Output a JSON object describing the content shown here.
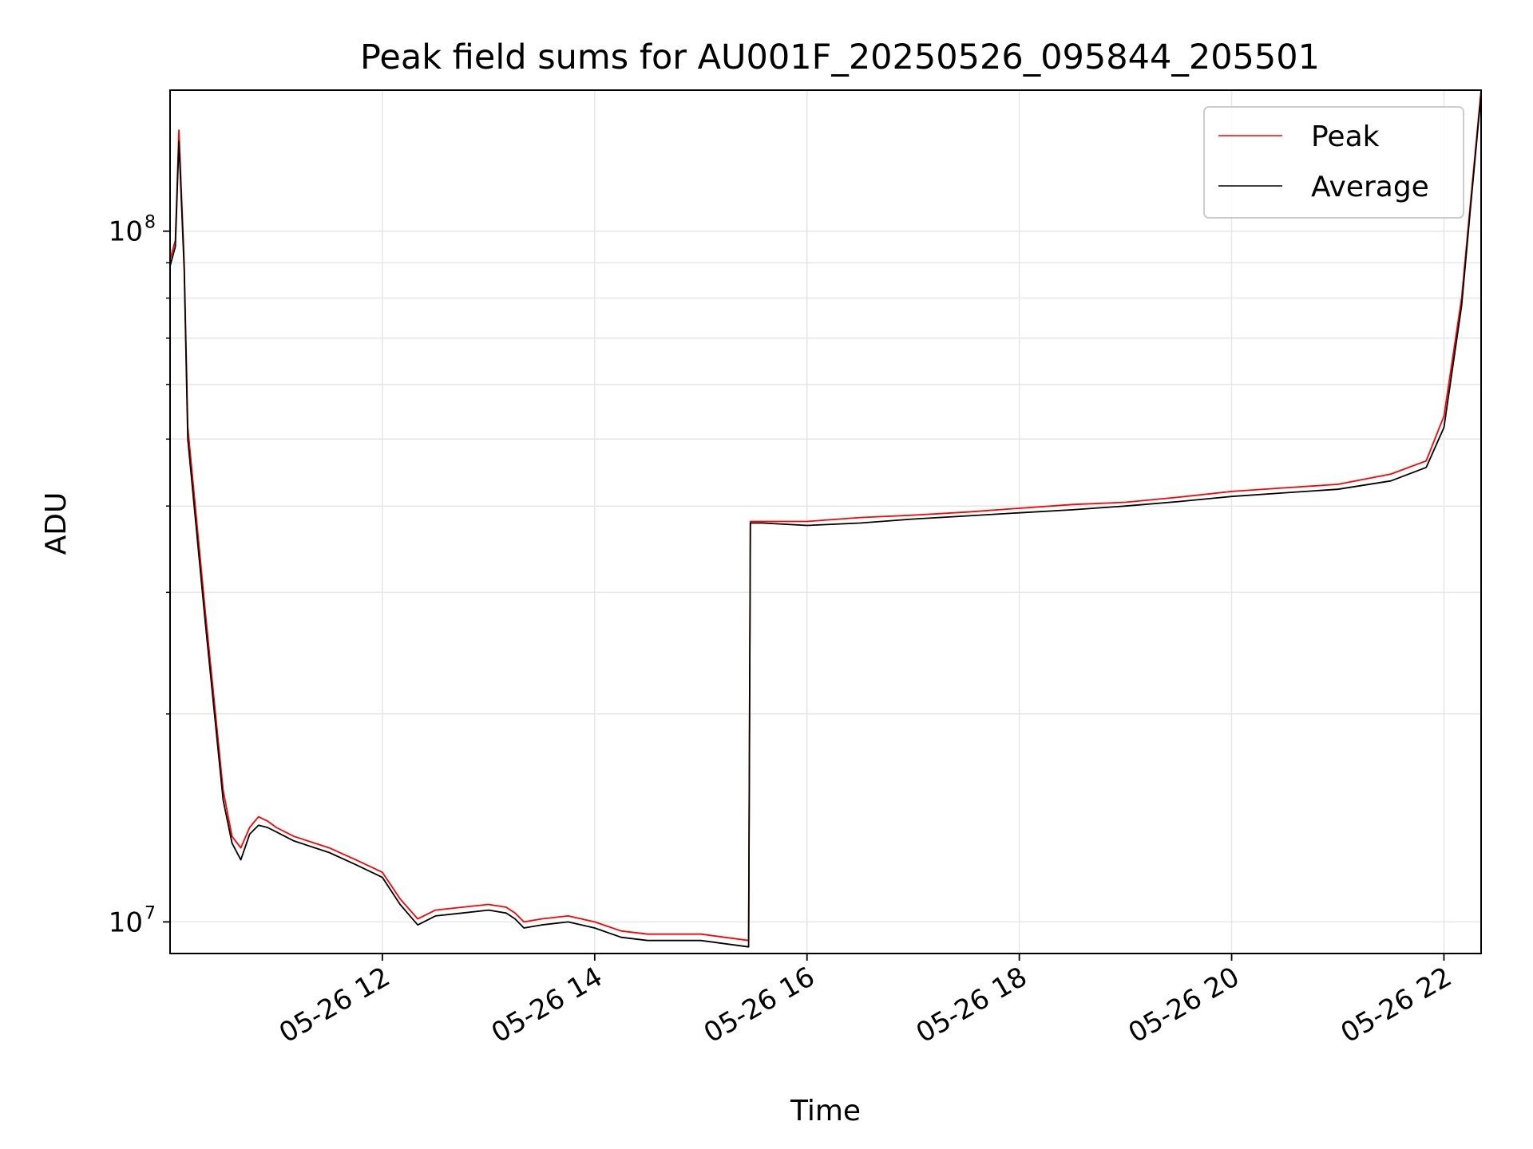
{
  "chart_data": {
    "type": "line",
    "title": "Peak field sums for AU001F_20250526_095844_205501",
    "xlabel": "Time",
    "ylabel": "ADU",
    "yscale": "log",
    "ylim": [
      9000000,
      160000000
    ],
    "xlim": [
      "2025-05-26 10:00",
      "2025-05-26 22:21"
    ],
    "x_tick_labels": [
      "05-26 12",
      "05-26 14",
      "05-26 16",
      "05-26 18",
      "05-26 20",
      "05-26 22"
    ],
    "x_tick_values": [
      "2025-05-26 12:00",
      "2025-05-26 14:00",
      "2025-05-26 16:00",
      "2025-05-26 18:00",
      "2025-05-26 20:00",
      "2025-05-26 22:00"
    ],
    "y_ticks": [
      {
        "value": 10000000,
        "label": "10",
        "exponent": "7"
      },
      {
        "value": 100000000,
        "label": "10",
        "exponent": "8"
      }
    ],
    "y_minor_ticks": [
      20000000,
      30000000,
      40000000,
      50000000,
      60000000,
      70000000,
      80000000,
      90000000
    ],
    "grid": true,
    "legend_position": "top-right",
    "series": [
      {
        "name": "Peak",
        "color": "#ff0000",
        "x": [
          "2025-05-26 10:00",
          "2025-05-26 10:03",
          "2025-05-26 10:05",
          "2025-05-26 10:08",
          "2025-05-26 10:10",
          "2025-05-26 10:20",
          "2025-05-26 10:30",
          "2025-05-26 10:35",
          "2025-05-26 10:40",
          "2025-05-26 10:45",
          "2025-05-26 10:50",
          "2025-05-26 10:55",
          "2025-05-26 11:00",
          "2025-05-26 11:10",
          "2025-05-26 11:30",
          "2025-05-26 11:45",
          "2025-05-26 12:00",
          "2025-05-26 12:10",
          "2025-05-26 12:20",
          "2025-05-26 12:30",
          "2025-05-26 12:45",
          "2025-05-26 13:00",
          "2025-05-26 13:10",
          "2025-05-26 13:15",
          "2025-05-26 13:20",
          "2025-05-26 13:30",
          "2025-05-26 13:45",
          "2025-05-26 14:00",
          "2025-05-26 14:15",
          "2025-05-26 14:30",
          "2025-05-26 15:00",
          "2025-05-26 15:27",
          "2025-05-26 15:28",
          "2025-05-26 15:35",
          "2025-05-26 16:00",
          "2025-05-26 16:30",
          "2025-05-26 17:00",
          "2025-05-26 17:30",
          "2025-05-26 18:00",
          "2025-05-26 18:30",
          "2025-05-26 19:00",
          "2025-05-26 19:30",
          "2025-05-26 20:00",
          "2025-05-26 20:30",
          "2025-05-26 21:00",
          "2025-05-26 21:30",
          "2025-05-26 21:50",
          "2025-05-26 22:00",
          "2025-05-26 22:10",
          "2025-05-26 22:15",
          "2025-05-26 22:21"
        ],
        "values": [
          91000000,
          97000000,
          140000000,
          90000000,
          52000000,
          28000000,
          15500000,
          13300000,
          12800000,
          13700000,
          14200000,
          14000000,
          13700000,
          13300000,
          12800000,
          12300000,
          11800000,
          10800000,
          10100000,
          10400000,
          10500000,
          10600000,
          10500000,
          10300000,
          10000000,
          10100000,
          10200000,
          10000000,
          9700000,
          9600000,
          9600000,
          9400000,
          38000000,
          38000000,
          38000000,
          38500000,
          38800000,
          39200000,
          39700000,
          40200000,
          40500000,
          41200000,
          42000000,
          42500000,
          43000000,
          44500000,
          46500000,
          54000000,
          80000000,
          110000000,
          160000000
        ]
      },
      {
        "name": "Average",
        "color": "#000000",
        "x": [
          "2025-05-26 10:00",
          "2025-05-26 10:03",
          "2025-05-26 10:05",
          "2025-05-26 10:08",
          "2025-05-26 10:10",
          "2025-05-26 10:20",
          "2025-05-26 10:30",
          "2025-05-26 10:35",
          "2025-05-26 10:40",
          "2025-05-26 10:45",
          "2025-05-26 10:50",
          "2025-05-26 10:55",
          "2025-05-26 11:00",
          "2025-05-26 11:10",
          "2025-05-26 11:30",
          "2025-05-26 11:45",
          "2025-05-26 12:00",
          "2025-05-26 12:10",
          "2025-05-26 12:20",
          "2025-05-26 12:30",
          "2025-05-26 12:45",
          "2025-05-26 13:00",
          "2025-05-26 13:10",
          "2025-05-26 13:15",
          "2025-05-26 13:20",
          "2025-05-26 13:30",
          "2025-05-26 13:45",
          "2025-05-26 14:00",
          "2025-05-26 14:15",
          "2025-05-26 14:30",
          "2025-05-26 15:00",
          "2025-05-26 15:27",
          "2025-05-26 15:28",
          "2025-05-26 15:35",
          "2025-05-26 16:00",
          "2025-05-26 16:30",
          "2025-05-26 17:00",
          "2025-05-26 17:30",
          "2025-05-26 18:00",
          "2025-05-26 18:30",
          "2025-05-26 19:00",
          "2025-05-26 19:30",
          "2025-05-26 20:00",
          "2025-05-26 20:30",
          "2025-05-26 21:00",
          "2025-05-26 21:30",
          "2025-05-26 21:50",
          "2025-05-26 22:00",
          "2025-05-26 22:10",
          "2025-05-26 22:15",
          "2025-05-26 22:21"
        ],
        "values": [
          89000000,
          95000000,
          135000000,
          88000000,
          50000000,
          27000000,
          15000000,
          13000000,
          12300000,
          13400000,
          13800000,
          13700000,
          13500000,
          13100000,
          12600000,
          12100000,
          11600000,
          10600000,
          9900000,
          10200000,
          10300000,
          10400000,
          10300000,
          10100000,
          9800000,
          9900000,
          10000000,
          9800000,
          9500000,
          9400000,
          9400000,
          9200000,
          37800000,
          37800000,
          37500000,
          37800000,
          38300000,
          38700000,
          39100000,
          39500000,
          40000000,
          40600000,
          41300000,
          41800000,
          42300000,
          43500000,
          45500000,
          52000000,
          78000000,
          108000000,
          158000000
        ]
      }
    ]
  }
}
